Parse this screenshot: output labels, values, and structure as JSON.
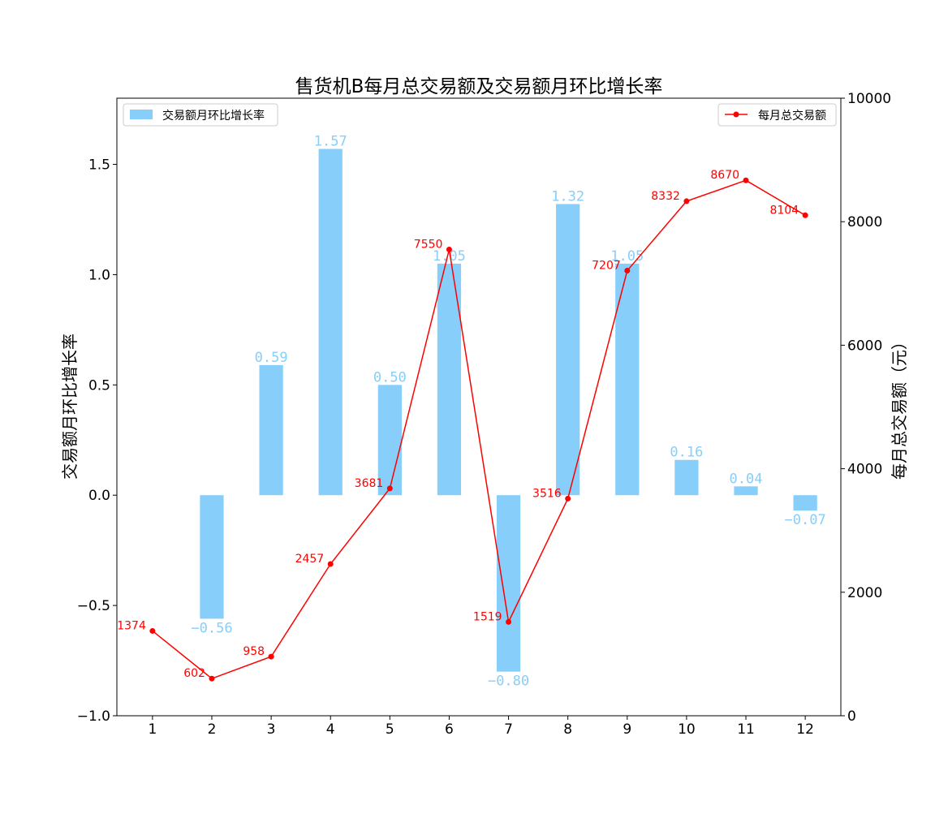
{
  "chart_data": {
    "type": "bar+line",
    "title": "售货机B每月总交易额及交易额月环比增长率",
    "categories": [
      "1",
      "2",
      "3",
      "4",
      "5",
      "6",
      "7",
      "8",
      "9",
      "10",
      "11",
      "12"
    ],
    "left_axis": {
      "label": "交易额月环比增长率",
      "ylim": [
        -1.0,
        1.8
      ],
      "ticks": [
        -1.0,
        -0.5,
        0.0,
        0.5,
        1.0,
        1.5
      ],
      "tick_labels": [
        "−1.0",
        "−0.5",
        "0.0",
        "0.5",
        "1.0",
        "1.5"
      ]
    },
    "right_axis": {
      "label": "每月总交易额（元）",
      "ylim": [
        0,
        10000
      ],
      "ticks": [
        0,
        2000,
        4000,
        6000,
        8000,
        10000
      ],
      "tick_labels": [
        "0",
        "2000",
        "4000",
        "6000",
        "8000",
        "10000"
      ]
    },
    "series": [
      {
        "name": "交易额月环比增长率",
        "type": "bar",
        "axis": "left",
        "color": "#87CEFA",
        "values": [
          null,
          -0.56,
          0.59,
          1.57,
          0.5,
          1.05,
          -0.8,
          1.32,
          1.05,
          0.16,
          0.04,
          -0.07
        ],
        "labels": [
          "",
          "−0.56",
          "0.59",
          "1.57",
          "0.50",
          "1.05",
          "−0.80",
          "1.32",
          "1.05",
          "0.16",
          "0.04",
          "−0.07"
        ]
      },
      {
        "name": "每月总交易额",
        "type": "line",
        "axis": "right",
        "color": "#FF0000",
        "values": [
          1374,
          602,
          958,
          2457,
          3681,
          7550,
          1519,
          3516,
          7207,
          8332,
          8670,
          8104
        ],
        "labels": [
          "1374",
          "602",
          "958",
          "2457",
          "3681",
          "7550",
          "1519",
          "3516",
          "7207",
          "8332",
          "8670",
          "8104"
        ]
      }
    ],
    "legends": [
      {
        "position": "top-left",
        "label": "交易额月环比增长率"
      },
      {
        "position": "top-right",
        "label": "每月总交易额"
      }
    ],
    "grid": false
  }
}
